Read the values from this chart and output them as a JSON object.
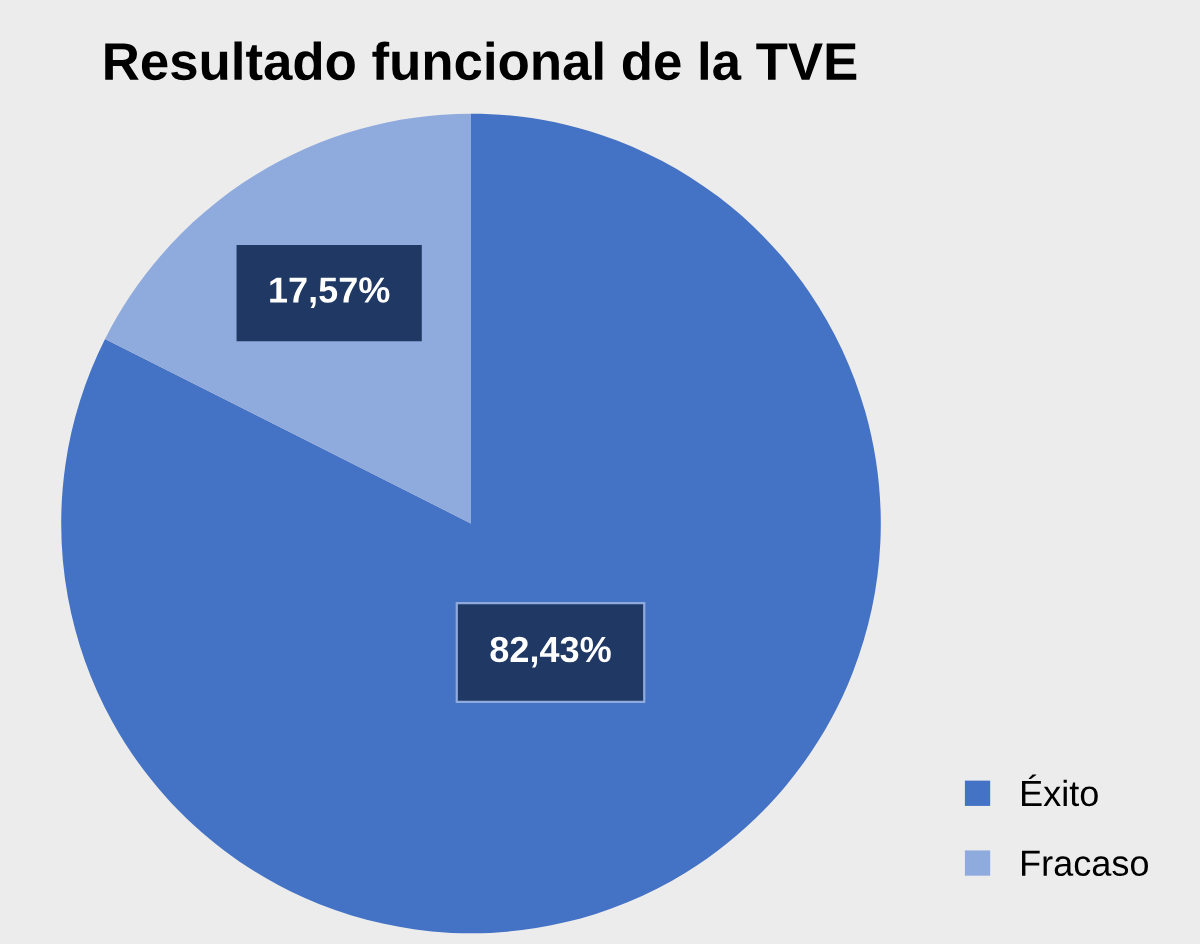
{
  "chart_data": {
    "type": "pie",
    "title": "Resultado funcional de la TVE",
    "categories": [
      "Éxito",
      "Fracaso"
    ],
    "values": [
      82.43,
      17.57
    ],
    "colors": [
      "#4472c4",
      "#8faadc"
    ],
    "value_labels": [
      "82,43%",
      "17,57%"
    ],
    "legend": "bottom right"
  }
}
